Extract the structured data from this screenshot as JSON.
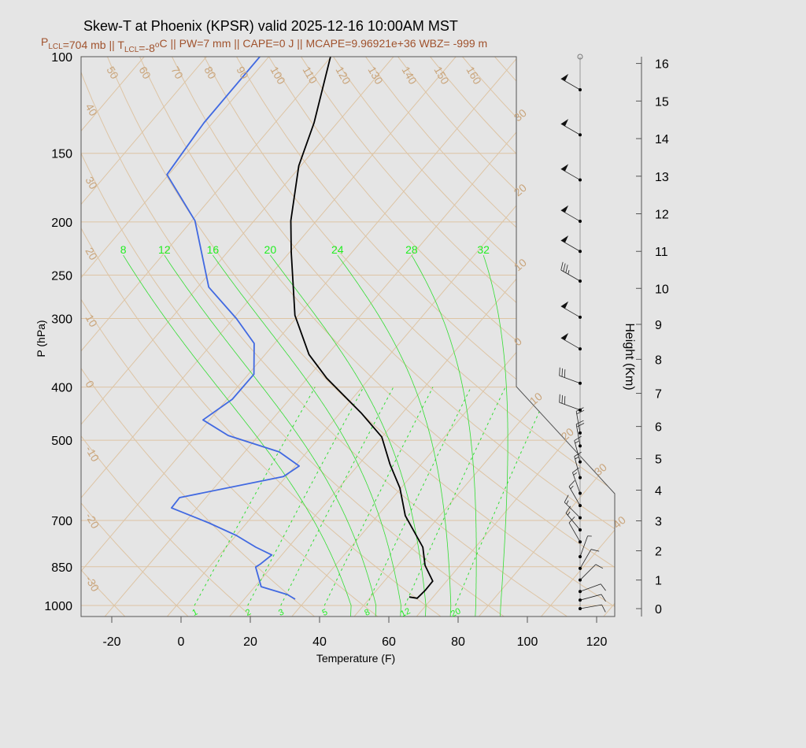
{
  "chart_data": {
    "type": "skew-t",
    "title": "Skew-T at Phoenix (KPSR) valid 2025-12-16 10:00AM MST",
    "subtitle_parts": [
      {
        "t": "P",
        "k": "n"
      },
      {
        "t": "LCL",
        "k": "sub"
      },
      {
        "t": "=704 mb || T",
        "k": "n"
      },
      {
        "t": "LCL",
        "k": "sub"
      },
      {
        "t": "=-8",
        "k": "n"
      },
      {
        "t": "o",
        "k": "sup"
      },
      {
        "t": "C || PW=7 mm || CAPE=0 J || MCAPE=9.96921e+36 WBZ= -999 m",
        "k": "n"
      }
    ],
    "xlabel": "Temperature (F)",
    "ylabel": "P (hPa)",
    "y2label": "Height (Km)",
    "x_ticks": [
      -20,
      0,
      20,
      40,
      60,
      80,
      100,
      120
    ],
    "p_ticks": [
      100,
      150,
      200,
      250,
      300,
      400,
      500,
      700,
      850,
      1000
    ],
    "height_ticks": [
      0,
      1,
      2,
      3,
      4,
      5,
      6,
      7,
      8,
      9,
      10,
      11,
      12,
      13,
      14,
      15,
      16
    ],
    "y_scale": "log",
    "p_range": [
      1050,
      100
    ],
    "colors": {
      "temperature": "#000000",
      "dewpoint": "#4169e1",
      "grid": "#ddc4a4",
      "grid_label": "#c9a57c",
      "moist": "#33dd33",
      "subtitle": "#a0522d",
      "background": "#e5e5e5"
    },
    "temperature_profile": {
      "p": [
        965,
        970,
        939,
        903,
        845,
        783,
        686,
        611,
        553,
        493,
        447,
        385,
        349,
        296,
        227,
        199,
        158,
        132,
        100
      ],
      "t_f": [
        61.1,
        63.7,
        64.1,
        64.0,
        57.9,
        52.8,
        40.0,
        31.7,
        23.0,
        13.9,
        2.4,
        -16.5,
        -27.3,
        -41.0,
        -57.6,
        -65.4,
        -76.6,
        -82.7,
        -94.2
      ]
    },
    "dewpoint_profile": {
      "p": [
        974,
        955,
        924,
        851,
        842,
        809,
        783,
        745,
        707,
        664,
        636,
        582,
        557,
        525,
        490,
        459,
        421,
        379,
        333,
        300,
        263,
        199,
        164,
        132,
        100
      ],
      "t_f": [
        28.7,
        25.3,
        15.8,
        9.4,
        10.0,
        11.1,
        4.6,
        -4.0,
        -15.0,
        -29.4,
        -29.6,
        -4.8,
        -2.8,
        -12.0,
        -30.8,
        -41.9,
        -38.5,
        -38.4,
        -45.9,
        -57.1,
        -72.8,
        -93.1,
        -112.5,
        -114.5,
        -114.6
      ]
    },
    "dry_adiabat_labels_top": [
      "50",
      "60",
      "70",
      "80",
      "90",
      "100",
      "110",
      "120",
      "130",
      "140",
      "150",
      "160"
    ],
    "dry_adiabat_labels_left": [
      "40",
      "30",
      "20",
      "10",
      "0",
      "-10",
      "-20",
      "-30"
    ],
    "isotherm_labels_right": [
      "30",
      "20",
      "10",
      "0"
    ],
    "isotherm_labels_diag": [
      "10",
      "20",
      "30",
      "40"
    ],
    "moist_adiabat_labels": [
      "8",
      "12",
      "16",
      "20",
      "24",
      "28",
      "32"
    ],
    "mixing_ratio_labels": [
      "1",
      "2",
      "3",
      "5",
      "8",
      "12",
      "20"
    ],
    "wind_barbs": [
      {
        "h": 0.0,
        "dir": 80,
        "kt": 10
      },
      {
        "h": 0.3,
        "dir": 75,
        "kt": 10
      },
      {
        "h": 0.6,
        "dir": 70,
        "kt": 10
      },
      {
        "h": 1.0,
        "dir": 45,
        "kt": 10
      },
      {
        "h": 1.4,
        "dir": 30,
        "kt": 10
      },
      {
        "h": 1.8,
        "dir": 20,
        "kt": 5
      },
      {
        "h": 2.3,
        "dir": 330,
        "kt": 10
      },
      {
        "h": 2.7,
        "dir": 320,
        "kt": 15
      },
      {
        "h": 3.1,
        "dir": 315,
        "kt": 15
      },
      {
        "h": 3.5,
        "dir": 330,
        "kt": 15
      },
      {
        "h": 3.9,
        "dir": 340,
        "kt": 15
      },
      {
        "h": 4.4,
        "dir": 345,
        "kt": 15
      },
      {
        "h": 4.9,
        "dir": 345,
        "kt": 15
      },
      {
        "h": 5.4,
        "dir": 350,
        "kt": 20
      },
      {
        "h": 5.8,
        "dir": 350,
        "kt": 20
      },
      {
        "h": 6.5,
        "dir": 290,
        "kt": 30
      },
      {
        "h": 7.3,
        "dir": 290,
        "kt": 30
      },
      {
        "h": 8.3,
        "dir": 300,
        "kt": 50
      },
      {
        "h": 9.2,
        "dir": 300,
        "kt": 50
      },
      {
        "h": 10.2,
        "dir": 300,
        "kt": 35
      },
      {
        "h": 11.0,
        "dir": 300,
        "kt": 50
      },
      {
        "h": 11.8,
        "dir": 300,
        "kt": 50
      },
      {
        "h": 12.9,
        "dir": 300,
        "kt": 50
      },
      {
        "h": 14.1,
        "dir": 300,
        "kt": 50
      },
      {
        "h": 15.3,
        "dir": 300,
        "kt": 50
      }
    ]
  }
}
